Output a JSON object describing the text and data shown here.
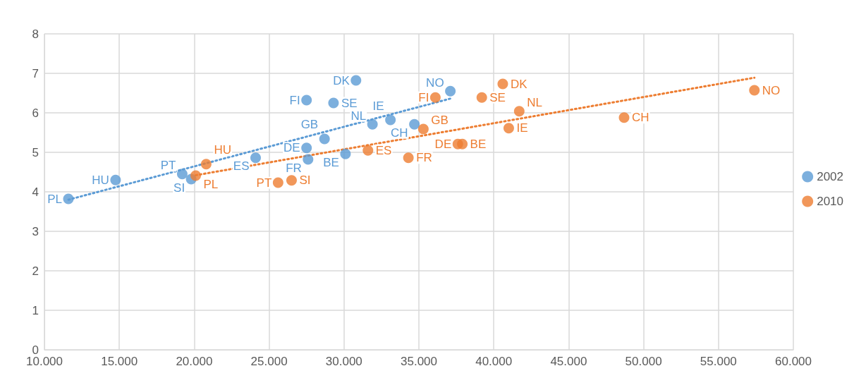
{
  "chart_data": {
    "type": "scatter",
    "marker": "circle",
    "grid": true,
    "legend": "right",
    "xlim": [
      10000,
      60000
    ],
    "xticks": [
      {
        "value": 10000,
        "label": "10.000"
      },
      {
        "value": 15000,
        "label": "15.000"
      },
      {
        "value": 20000,
        "label": "20.000"
      },
      {
        "value": 25000,
        "label": "25.000"
      },
      {
        "value": 30000,
        "label": "30.000"
      },
      {
        "value": 35000,
        "label": "35.000"
      },
      {
        "value": 40000,
        "label": "40.000"
      },
      {
        "value": 45000,
        "label": "45.000"
      },
      {
        "value": 50000,
        "label": "50.000"
      },
      {
        "value": 55000,
        "label": "55.000"
      },
      {
        "value": 60000,
        "label": "60.000"
      }
    ],
    "ylim": [
      0,
      8
    ],
    "yticks": [
      0,
      1,
      2,
      3,
      4,
      5,
      6,
      7,
      8
    ],
    "series": [
      {
        "name": "2002",
        "color": "#5b9bd5",
        "x": [
          11600,
          14750,
          19200,
          19800,
          24100,
          27500,
          27600,
          28700,
          30100,
          27500,
          29300,
          30800,
          31900,
          33100,
          34700,
          37100
        ],
        "values": [
          3.82,
          4.3,
          4.45,
          4.32,
          4.86,
          5.11,
          4.82,
          5.34,
          4.96,
          6.32,
          6.25,
          6.82,
          5.71,
          5.82,
          5.71,
          6.55
        ]
      },
      {
        "name": "2010",
        "color": "#ed7d31",
        "x": [
          20100,
          20800,
          25600,
          26500,
          31600,
          34300,
          35300,
          37600,
          37900,
          36100,
          39200,
          40600,
          41700,
          41000,
          48700,
          57400
        ],
        "values": [
          4.41,
          4.7,
          4.23,
          4.29,
          5.05,
          4.86,
          5.59,
          5.21,
          5.21,
          6.39,
          6.39,
          6.73,
          6.04,
          5.61,
          5.88,
          6.57
        ]
      },
      {
        "type": "line",
        "color": "#5b9bd5",
        "line_style": "dotted",
        "marker": "none",
        "x": [
          11600,
          37100
        ],
        "values": [
          3.8,
          6.36
        ]
      },
      {
        "type": "line",
        "color": "#ed7d31",
        "line_style": "dotted",
        "marker": "none",
        "x": [
          20100,
          57400
        ],
        "values": [
          4.42,
          6.89
        ]
      }
    ],
    "annotations": [
      {
        "text": "PL",
        "x": 11600,
        "y": 3.82
      },
      {
        "text": "HU",
        "x": 14750,
        "y": 4.3
      },
      {
        "text": "PT",
        "x": 19200,
        "y": 4.45
      },
      {
        "text": "SI",
        "x": 19800,
        "y": 4.32
      },
      {
        "text": "ES",
        "x": 24100,
        "y": 4.86
      },
      {
        "text": "DE",
        "x": 27500,
        "y": 5.11
      },
      {
        "text": "FR",
        "x": 27600,
        "y": 4.82
      },
      {
        "text": "GB",
        "x": 28700,
        "y": 5.34
      },
      {
        "text": "BE",
        "x": 30100,
        "y": 4.96
      },
      {
        "text": "FI",
        "x": 27500,
        "y": 6.32
      },
      {
        "text": "SE",
        "x": 29300,
        "y": 6.25
      },
      {
        "text": "DK",
        "x": 30800,
        "y": 6.82
      },
      {
        "text": "NL",
        "x": 31900,
        "y": 5.71
      },
      {
        "text": "IE",
        "x": 33100,
        "y": 5.82
      },
      {
        "text": "CH",
        "x": 34700,
        "y": 5.71
      },
      {
        "text": "NO",
        "x": 37100,
        "y": 6.55
      },
      {
        "text": "PL",
        "x": 20100,
        "y": 4.41
      },
      {
        "text": "HU",
        "x": 20800,
        "y": 4.7
      },
      {
        "text": "PT",
        "x": 25600,
        "y": 4.23
      },
      {
        "text": "SI",
        "x": 26500,
        "y": 4.29
      },
      {
        "text": "ES",
        "x": 31600,
        "y": 5.05
      },
      {
        "text": "FR",
        "x": 34300,
        "y": 4.86
      },
      {
        "text": "GB",
        "x": 35300,
        "y": 5.59
      },
      {
        "text": "DE",
        "x": 37600,
        "y": 5.21
      },
      {
        "text": "BE",
        "x": 37900,
        "y": 5.21
      },
      {
        "text": "FI",
        "x": 36100,
        "y": 6.39
      },
      {
        "text": "SE",
        "x": 39200,
        "y": 6.39
      },
      {
        "text": "DK",
        "x": 40600,
        "y": 6.73
      },
      {
        "text": "NL",
        "x": 41700,
        "y": 6.04
      },
      {
        "text": "IE",
        "x": 41000,
        "y": 5.61
      },
      {
        "text": "CH",
        "x": 48700,
        "y": 5.88
      },
      {
        "text": "NO",
        "x": 57400,
        "y": 6.57
      }
    ]
  }
}
